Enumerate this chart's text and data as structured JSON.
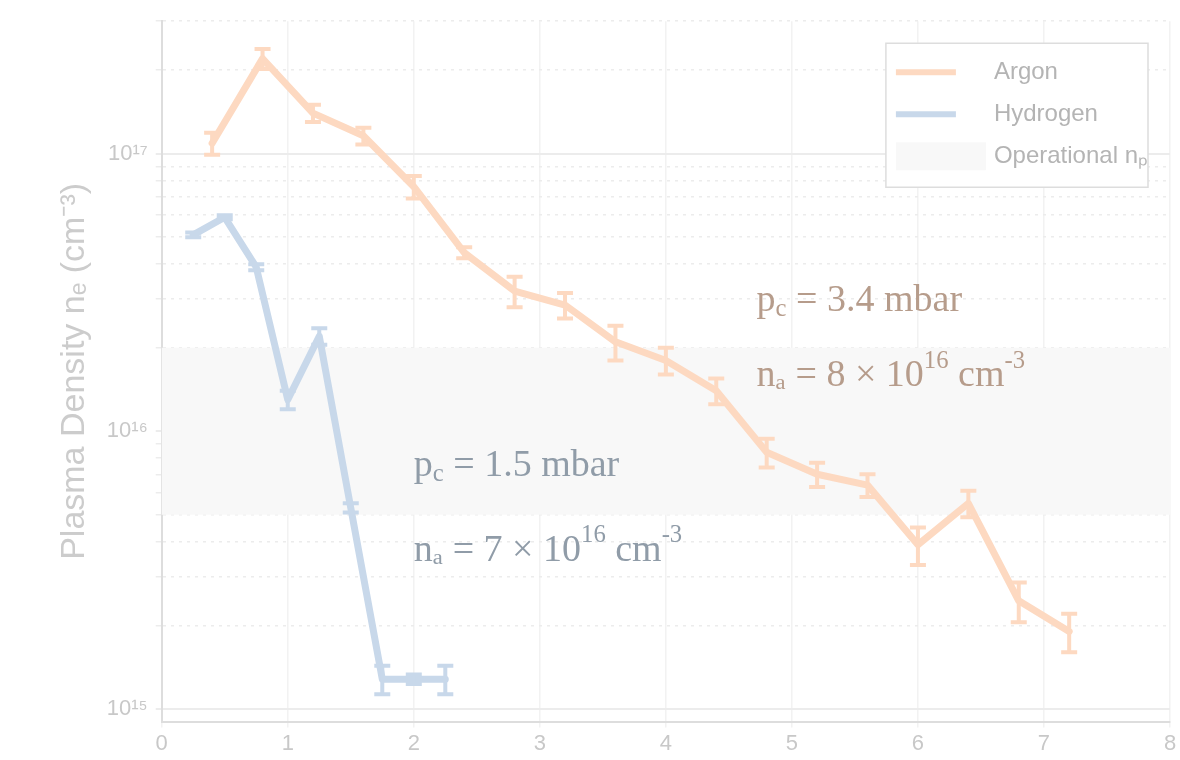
{
  "chart_data": {
    "type": "line",
    "ylabel": "Plasma Density nₑ (cm⁻³)",
    "log": "y",
    "grid": true,
    "legend": "top right",
    "line_style": "solid",
    "xlim": [
      0,
      8
    ],
    "xticks": [
      0,
      1,
      2,
      3,
      4,
      5,
      6,
      7,
      8
    ],
    "ylim": [
      900000000000000.0,
      3e+17
    ],
    "yticks": [
      {
        "value": 1000000000000000.0,
        "label": "10¹⁵"
      },
      {
        "value": 2000000000000000.0,
        "label": null
      },
      {
        "value": 3000000000000000.0,
        "label": null
      },
      {
        "value": 4000000000000000.0,
        "label": null
      },
      {
        "value": 5000000000000000.0,
        "label": null
      },
      {
        "value": 6000000000000000.0,
        "label": null
      },
      {
        "value": 7000000000000000.0,
        "label": null
      },
      {
        "value": 8000000000000000.0,
        "label": null
      },
      {
        "value": 9000000000000000.0,
        "label": null
      },
      {
        "value": 1e+16,
        "label": "10¹⁶"
      },
      {
        "value": 2e+16,
        "label": null
      },
      {
        "value": 3e+16,
        "label": null
      },
      {
        "value": 4e+16,
        "label": null
      },
      {
        "value": 5e+16,
        "label": null
      },
      {
        "value": 6e+16,
        "label": null
      },
      {
        "value": 7e+16,
        "label": null
      },
      {
        "value": 8e+16,
        "label": null
      },
      {
        "value": 9e+16,
        "label": null
      },
      {
        "value": 1e+17,
        "label": "10¹⁷"
      },
      {
        "value": 2e+17,
        "label": null
      },
      {
        "value": 3e+17,
        "label": null
      }
    ],
    "series": [
      {
        "name": "Argon",
        "color": "#fdd9c1",
        "x": [
          0.4,
          0.8,
          1.2,
          1.6,
          2.0,
          2.4,
          2.8,
          3.2,
          3.6,
          4.0,
          4.4,
          4.8,
          5.2,
          5.6,
          6.0,
          6.4,
          6.8,
          7.2
        ],
        "values": [
          1.09e+17,
          2.2e+17,
          1.4e+17,
          1.16e+17,
          7.6e+16,
          4.4e+16,
          3.2e+16,
          2.85e+16,
          2.1e+16,
          1.8e+16,
          1.4e+16,
          8400000000000000.0,
          7000000000000000.0,
          6400000000000000.0,
          3900000000000000.0,
          5500000000000000.0,
          2450000000000000.0,
          1900000000000000.0
        ],
        "errors": [
          1e+16,
          1.8e+16,
          1e+16,
          8000000000000000.0,
          7000000000000000.0,
          2000000000000000.0,
          4000000000000000.0,
          3000000000000000.0,
          3000000000000000.0,
          2000000000000000.0,
          1500000000000000.0,
          1000000000000000.0,
          700000000000000.0,
          600000000000000.0,
          600000000000000.0,
          600000000000000.0,
          400000000000000.0,
          300000000000000.0
        ]
      },
      {
        "name": "Hydrogen",
        "color": "#c8d8ea",
        "x": [
          0.25,
          0.5,
          0.75,
          1.0,
          1.25,
          1.5,
          1.75,
          2.0,
          2.25
        ],
        "values": [
          5.1e+16,
          5.9e+16,
          3.9e+16,
          1.3e+16,
          2.2e+16,
          5300000000000000.0,
          1280000000000000.0,
          1280000000000000.0,
          1280000000000000.0
        ],
        "errors": [
          1000000000000000.0,
          1000000000000000.0,
          1000000000000000.0,
          1000000000000000.0,
          1500000000000000.0,
          200000000000000.0,
          150000000000000.0,
          50000000000000.0,
          150000000000000.0
        ]
      }
    ],
    "bands": [
      {
        "axis": "y",
        "from": 5000000000000000.0,
        "to": 2e+16,
        "label": "Operational nₚ",
        "color": "#f8f8f8"
      }
    ],
    "annotations": [
      "p$_{c}$ = 3.4 mbar",
      "nₐ = 8 × 10$^{16}$ cm$^{-3}$",
      "p$_{c}$ = 1.5 mbar",
      "nₐ = 7 × 10$^{16}$ cm$^{-3}$"
    ]
  }
}
